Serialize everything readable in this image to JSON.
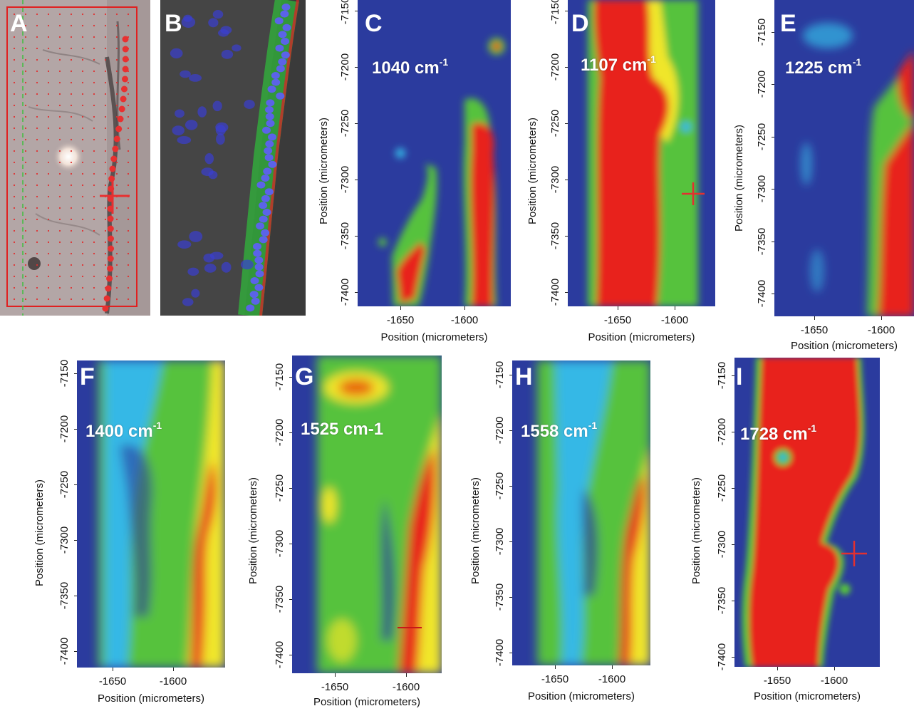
{
  "panels": {
    "A": {
      "letter": "A"
    },
    "B": {
      "letter": "B"
    },
    "C": {
      "letter": "C",
      "wavenumber": "1040 cm",
      "sup": "-1"
    },
    "D": {
      "letter": "D",
      "wavenumber": "1107 cm",
      "sup": "-1"
    },
    "E": {
      "letter": "E",
      "wavenumber": "1225 cm",
      "sup": "-1"
    },
    "F": {
      "letter": "F",
      "wavenumber": "1400 cm",
      "sup": "-1"
    },
    "G": {
      "letter": "G",
      "wavenumber": "1525 cm-1",
      "sup": ""
    },
    "H": {
      "letter": "H",
      "wavenumber": "1558 cm",
      "sup": "-1"
    },
    "I": {
      "letter": "I",
      "wavenumber": "1728 cm",
      "sup": "-1"
    }
  },
  "axes": {
    "ylabel": "Position (micrometers)",
    "xlabel": "Position (micrometers)",
    "yticks": [
      "-7150",
      "-7200",
      "-7250",
      "-7300",
      "-7350",
      "-7400"
    ],
    "xticks": [
      "-1650",
      "-1600"
    ]
  },
  "colors": {
    "background": "#2b3b9e",
    "low": "#2b3b9e",
    "cyan": "#35b8e6",
    "green": "#56c23e",
    "yellow": "#f0e62a",
    "red": "#e8231c",
    "marker": "#e23030"
  }
}
